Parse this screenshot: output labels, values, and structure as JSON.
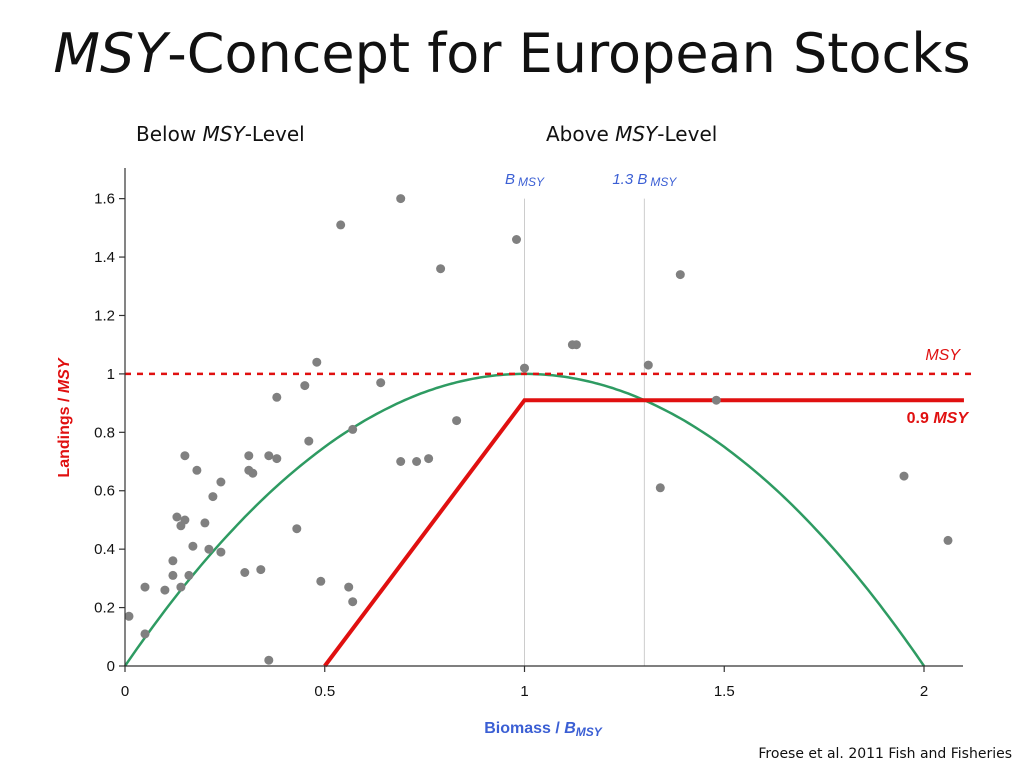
{
  "title": {
    "italic": "MSY",
    "rest": "-Concept for European Stocks"
  },
  "labels": {
    "below": {
      "pre": "Below ",
      "italic": "MSY",
      "post": "-Level"
    },
    "above": {
      "pre": "Above ",
      "italic": "MSY",
      "post": "-Level"
    }
  },
  "credit": "Froese et al. 2011 Fish and Fisheries",
  "chart_data": {
    "type": "scatter",
    "xlabel": {
      "main": "Biomass / ",
      "italic": "B",
      "sub": "MSY"
    },
    "ylabel": {
      "main": "Landings / ",
      "italic": "MSY"
    },
    "xlim": [
      0,
      2.1
    ],
    "ylim": [
      0,
      1.7
    ],
    "xticks": [
      0,
      0.5,
      1,
      1.5,
      2
    ],
    "yticks": [
      0,
      0.2,
      0.4,
      0.6,
      0.8,
      1,
      1.2,
      1.4,
      1.6
    ],
    "grid": false,
    "colors": {
      "points": "#808080",
      "curve": "#2e9b62",
      "rule": "#e01010",
      "ref_text": "#3b5fd4",
      "ref_line": "#cccccc"
    },
    "reference_lines": [
      {
        "x": 1.0,
        "label_italic": "B",
        "label_sub": "MSY"
      },
      {
        "x": 1.3,
        "label_prefix": "1.3 ",
        "label_italic": "B",
        "label_sub": "MSY"
      }
    ],
    "msy_line": {
      "y": 1.0,
      "label": "MSY",
      "style": "dashed"
    },
    "harvest_rule": {
      "points": [
        [
          0.5,
          0
        ],
        [
          1.0,
          0.91
        ],
        [
          2.1,
          0.91
        ]
      ],
      "label_prefix": "0.9 ",
      "label_italic": "MSY"
    },
    "curve": {
      "formula": "y = 4*(x/2)*(1-x/2)",
      "x_range": [
        0,
        2
      ]
    },
    "points": [
      [
        0.01,
        0.17
      ],
      [
        0.05,
        0.11
      ],
      [
        0.05,
        0.27
      ],
      [
        0.1,
        0.26
      ],
      [
        0.12,
        0.31
      ],
      [
        0.12,
        0.36
      ],
      [
        0.13,
        0.51
      ],
      [
        0.14,
        0.48
      ],
      [
        0.14,
        0.27
      ],
      [
        0.15,
        0.72
      ],
      [
        0.15,
        0.5
      ],
      [
        0.16,
        0.31
      ],
      [
        0.17,
        0.41
      ],
      [
        0.18,
        0.67
      ],
      [
        0.2,
        0.49
      ],
      [
        0.21,
        0.4
      ],
      [
        0.22,
        0.58
      ],
      [
        0.24,
        0.39
      ],
      [
        0.24,
        0.63
      ],
      [
        0.3,
        0.32
      ],
      [
        0.31,
        0.72
      ],
      [
        0.31,
        0.67
      ],
      [
        0.32,
        0.66
      ],
      [
        0.34,
        0.33
      ],
      [
        0.36,
        0.72
      ],
      [
        0.36,
        0.02
      ],
      [
        0.38,
        0.71
      ],
      [
        0.38,
        0.92
      ],
      [
        0.43,
        0.47
      ],
      [
        0.45,
        0.96
      ],
      [
        0.46,
        0.77
      ],
      [
        0.48,
        1.04
      ],
      [
        0.49,
        0.29
      ],
      [
        0.54,
        1.51
      ],
      [
        0.56,
        0.27
      ],
      [
        0.57,
        0.22
      ],
      [
        0.57,
        0.81
      ],
      [
        0.64,
        0.97
      ],
      [
        0.69,
        1.6
      ],
      [
        0.69,
        0.7
      ],
      [
        0.73,
        0.7
      ],
      [
        0.76,
        0.71
      ],
      [
        0.79,
        1.36
      ],
      [
        0.83,
        0.84
      ],
      [
        0.98,
        1.46
      ],
      [
        1.0,
        1.02
      ],
      [
        1.12,
        1.1
      ],
      [
        1.13,
        1.1
      ],
      [
        1.31,
        1.03
      ],
      [
        1.34,
        0.61
      ],
      [
        1.39,
        1.34
      ],
      [
        1.48,
        0.91
      ],
      [
        1.95,
        0.65
      ],
      [
        2.06,
        0.43
      ]
    ]
  }
}
